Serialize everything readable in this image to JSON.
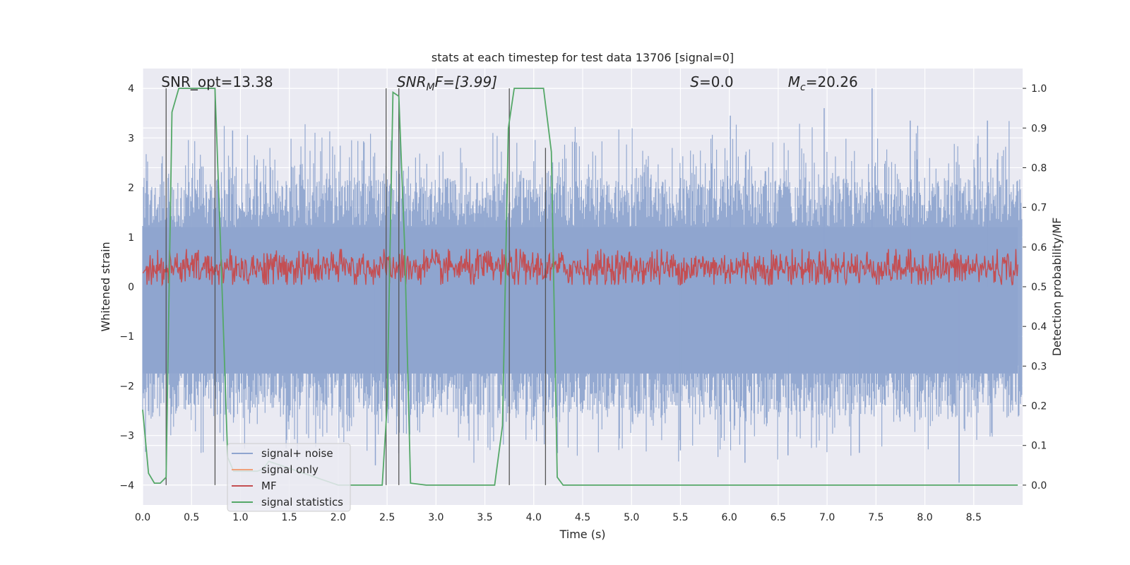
{
  "chart_data": {
    "type": "line",
    "title": "stats at each timestep for test data 13706 [signal=0]",
    "xlabel": "Time (s)",
    "ylabel_left": "Whitened strain",
    "ylabel_right": "Detection probability/MF",
    "xlim": [
      0.0,
      9.0
    ],
    "ylim_left": [
      -4.4,
      4.4
    ],
    "ylim_right": [
      -0.05,
      1.05
    ],
    "grid": true,
    "x_ticks": [
      "0.0",
      "0.5",
      "1.0",
      "1.5",
      "2.0",
      "2.5",
      "3.0",
      "3.5",
      "4.0",
      "4.5",
      "5.0",
      "5.5",
      "6.0",
      "6.5",
      "7.0",
      "7.5",
      "8.0",
      "8.5"
    ],
    "y_ticks_left": [
      "4",
      "3",
      "2",
      "1",
      "0",
      "−1",
      "−2",
      "−3",
      "−4"
    ],
    "y_ticks_right": [
      "1.0",
      "0.9",
      "0.8",
      "0.7",
      "0.6",
      "0.5",
      "0.4",
      "0.3",
      "0.2",
      "0.1",
      "0.0"
    ],
    "annotations": [
      {
        "base": "SNR_opt=13.38",
        "sub": "",
        "rest": "",
        "italic": false,
        "x_data": 0.19
      },
      {
        "base": "SNR",
        "sub": "M",
        "rest": "F=[3.99]",
        "italic": true,
        "x_data": 2.6
      },
      {
        "base": "S",
        "sub": "",
        "rest": "=0.0",
        "italic": true,
        "x_data": 5.6
      },
      {
        "base": "M",
        "sub": "c",
        "rest": "=20.26",
        "italic": true,
        "x_data": 6.6
      }
    ],
    "legend": {
      "location": "lower left",
      "entries": [
        {
          "label": "signal+ noise",
          "color": "#8fa5cf"
        },
        {
          "label": "signal only",
          "color": "#f0a07a"
        },
        {
          "label": "MF",
          "color": "#c44e52"
        },
        {
          "label": "signal statistics",
          "color": "#55a868"
        }
      ]
    },
    "series": [
      {
        "name": "signal+ noise",
        "axis": "left",
        "color": "#8fa5cf",
        "description": "dense whitened noise, roughly within -3.9 to 4.0",
        "envelope": {
          "typical_max": 2.0,
          "typical_min": -2.4,
          "peak_max": 4.0,
          "peak_min": -3.95
        },
        "spikes": [
          {
            "x": 7.46,
            "y": 4.0
          },
          {
            "x": 6.97,
            "y": 3.6
          },
          {
            "x": 6.01,
            "y": 3.45
          },
          {
            "x": 7.85,
            "y": 3.35
          },
          {
            "x": 8.64,
            "y": 3.35
          },
          {
            "x": 0.92,
            "y": 3.15
          },
          {
            "x": 8.35,
            "y": -3.95
          },
          {
            "x": 6.16,
            "y": -3.55
          },
          {
            "x": 2.38,
            "y": -3.6
          },
          {
            "x": 5.5,
            "y": -3.3
          },
          {
            "x": 6.6,
            "y": -3.4
          },
          {
            "x": 7.33,
            "y": -3.35
          }
        ]
      },
      {
        "name": "signal only",
        "axis": "left",
        "color": "#f0a07a",
        "x": [
          0.0,
          9.0
        ],
        "y": [
          0.0,
          0.0
        ]
      },
      {
        "name": "MF",
        "axis": "right",
        "color": "#c44e52",
        "description": "noisy band between ~0.5 and ~0.6",
        "band": [
          0.505,
          0.59
        ]
      },
      {
        "name": "signal statistics",
        "axis": "right",
        "color": "#55a868",
        "x": [
          0.0,
          0.06,
          0.12,
          0.18,
          0.24,
          0.3,
          0.37,
          0.44,
          0.5,
          0.56,
          0.62,
          0.68,
          0.74,
          0.8,
          0.87,
          0.93,
          0.99,
          1.05,
          1.11,
          1.17,
          1.23,
          1.29,
          2.0,
          2.3,
          2.45,
          2.5,
          2.56,
          2.62,
          2.68,
          2.74,
          2.9,
          3.0,
          3.6,
          3.68,
          3.74,
          3.8,
          3.9,
          4.0,
          4.1,
          4.18,
          4.24,
          4.3,
          4.5,
          5.0,
          6.0,
          7.0,
          8.0,
          8.95
        ],
        "y": [
          0.19,
          0.03,
          0.005,
          0.005,
          0.02,
          0.94,
          1.0,
          1.0,
          1.0,
          1.0,
          1.0,
          1.0,
          1.0,
          0.58,
          0.07,
          0.035,
          0.035,
          0.035,
          0.035,
          0.035,
          0.04,
          0.06,
          0.0,
          0.0,
          0.0,
          0.2,
          0.99,
          0.98,
          0.6,
          0.005,
          0.0,
          0.0,
          0.0,
          0.15,
          0.9,
          1.0,
          1.0,
          1.0,
          1.0,
          0.84,
          0.02,
          0.0,
          0.0,
          0.0,
          0.0,
          0.0,
          0.0,
          0.0
        ]
      }
    ],
    "vertical_markers": [
      {
        "x": 0.24,
        "top": 1.0,
        "bottom": 0.0
      },
      {
        "x": 0.74,
        "top": 1.0,
        "bottom": 0.0
      },
      {
        "x": 2.49,
        "top": 1.0,
        "bottom": 0.0
      },
      {
        "x": 2.62,
        "top": 1.0,
        "bottom": 0.0
      },
      {
        "x": 3.75,
        "top": 1.0,
        "bottom": 0.0
      },
      {
        "x": 4.12,
        "top": 0.85,
        "bottom": 0.0
      }
    ]
  }
}
